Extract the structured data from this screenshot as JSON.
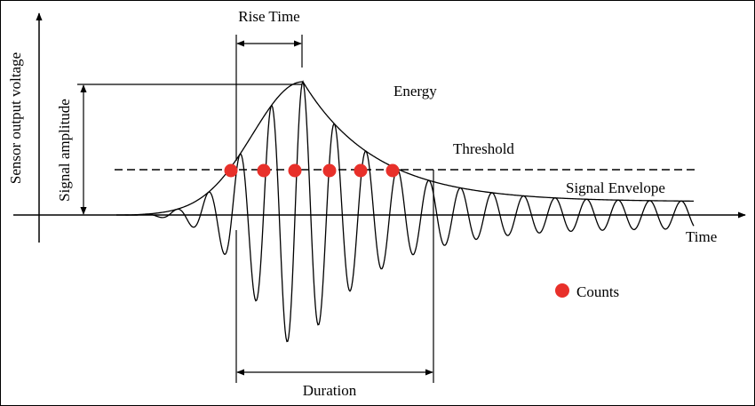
{
  "labels": {
    "y_axis": "Sensor output voltage",
    "x_axis": "Time",
    "amplitude": "Signal amplitude",
    "rise_time": "Rise Time",
    "energy": "Energy",
    "threshold": "Threshold",
    "envelope": "Signal Envelope",
    "duration": "Duration",
    "counts_legend": "Counts"
  },
  "colors": {
    "line": "#000000",
    "count_marker": "#e8302a",
    "background": "#ffffff"
  },
  "counts": {
    "number_of_markers": 6
  }
}
